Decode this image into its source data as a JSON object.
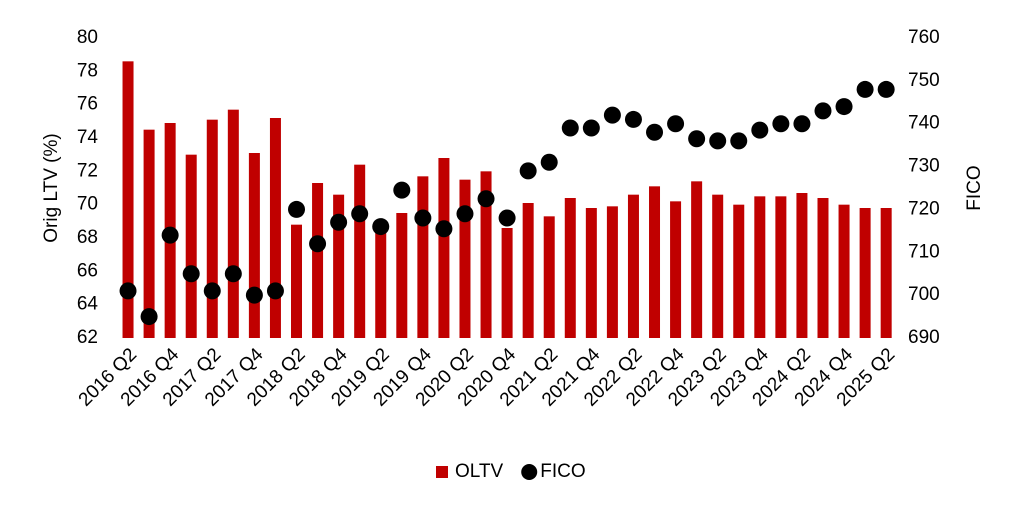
{
  "chart_data": {
    "type": "bar",
    "categories": [
      "2016 Q2",
      null,
      "2016 Q4",
      null,
      "2017 Q2",
      null,
      "2017 Q4",
      null,
      "2018 Q2",
      null,
      "2018 Q4",
      null,
      "2019 Q2",
      null,
      "2019 Q4",
      null,
      "2020 Q2",
      null,
      "2020 Q4",
      null,
      "2021 Q2",
      null,
      "2021 Q4",
      null,
      "2022 Q2",
      null,
      "2022 Q4",
      null,
      "2023 Q2",
      null,
      "2023 Q4",
      null,
      "2024 Q2",
      null,
      "2024 Q4",
      null,
      "2025 Q2"
    ],
    "series": [
      {
        "name": "OLTV",
        "type": "bar",
        "color": "#c00000",
        "values": [
          78.6,
          74.5,
          74.9,
          73.0,
          75.1,
          75.7,
          73.1,
          75.2,
          68.8,
          71.3,
          70.6,
          72.4,
          69.0,
          69.5,
          71.7,
          72.8,
          71.5,
          72.0,
          68.6,
          70.1,
          69.3,
          70.4,
          69.8,
          69.9,
          70.6,
          71.1,
          70.2,
          71.4,
          70.6,
          70.0,
          70.5,
          70.5,
          70.7,
          70.4,
          70.0,
          69.8,
          69.8
        ]
      },
      {
        "name": "FICO",
        "type": "scatter",
        "axis": "y2",
        "color": "#000000",
        "values": [
          701,
          695,
          714,
          705,
          701,
          705,
          700,
          701,
          720,
          712,
          717,
          719,
          716,
          724.5,
          718,
          715.5,
          719,
          722.5,
          718,
          729,
          731,
          739,
          739,
          742,
          741,
          738,
          740,
          736.5,
          736,
          736,
          738.5,
          740,
          740,
          743,
          744,
          748,
          748
        ]
      }
    ],
    "ylabel": "Orig LTV (%)",
    "y2label": "FICO",
    "ylim": [
      62,
      80
    ],
    "yticks": [
      62,
      64,
      66,
      68,
      70,
      72,
      74,
      76,
      78,
      80
    ],
    "y2lim": [
      690,
      760
    ],
    "y2ticks": [
      690,
      700,
      710,
      720,
      730,
      740,
      750,
      760
    ],
    "legend": "bottom",
    "grid": false
  }
}
